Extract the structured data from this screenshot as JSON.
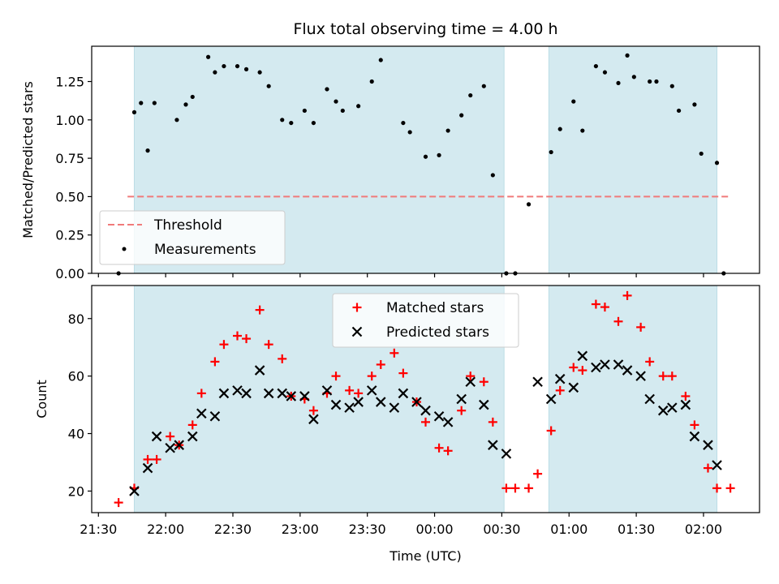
{
  "chart_data": [
    {
      "type": "scatter",
      "title": "Flux total observing time = 4.00 h",
      "ylabel": "Matched/Predicted stars",
      "xlim": [
        "21:27",
        "02:25"
      ],
      "ylim": [
        0,
        1.48
      ],
      "yticks": [
        0.0,
        0.25,
        0.5,
        0.75,
        1.0,
        1.25
      ],
      "yticklabels": [
        "0.00",
        "0.25",
        "0.50",
        "0.75",
        "1.00",
        "1.25"
      ],
      "shaded_intervals": [
        [
          "21:46",
          "00:31"
        ],
        [
          "00:51",
          "02:06"
        ]
      ],
      "shade_color": "#d4eaf0",
      "threshold": {
        "name": "Threshold",
        "value": 0.5,
        "x_range": [
          "21:43",
          "02:12"
        ],
        "color": "#f07a7a"
      },
      "legend": {
        "position": "lower-left",
        "entries": [
          "Threshold",
          "Measurements"
        ]
      },
      "series": [
        {
          "name": "Measurements",
          "color": "#000000",
          "marker": "dot",
          "points": [
            [
              "21:39",
              0.0
            ],
            [
              "21:46",
              1.05
            ],
            [
              "21:49",
              1.11
            ],
            [
              "21:52",
              0.8
            ],
            [
              "21:55",
              1.11
            ],
            [
              "22:05",
              1.0
            ],
            [
              "22:09",
              1.1
            ],
            [
              "22:12",
              1.15
            ],
            [
              "22:19",
              1.41
            ],
            [
              "22:22",
              1.31
            ],
            [
              "22:26",
              1.35
            ],
            [
              "22:32",
              1.35
            ],
            [
              "22:36",
              1.33
            ],
            [
              "22:42",
              1.31
            ],
            [
              "22:46",
              1.22
            ],
            [
              "22:52",
              1.0
            ],
            [
              "22:56",
              0.98
            ],
            [
              "23:02",
              1.06
            ],
            [
              "23:06",
              0.98
            ],
            [
              "23:12",
              1.2
            ],
            [
              "23:16",
              1.12
            ],
            [
              "23:19",
              1.06
            ],
            [
              "23:26",
              1.09
            ],
            [
              "23:32",
              1.25
            ],
            [
              "23:36",
              1.39
            ],
            [
              "23:46",
              0.98
            ],
            [
              "23:49",
              0.92
            ],
            [
              "23:56",
              0.76
            ],
            [
              "00:02",
              0.77
            ],
            [
              "00:06",
              0.93
            ],
            [
              "00:12",
              1.03
            ],
            [
              "00:16",
              1.16
            ],
            [
              "00:22",
              1.22
            ],
            [
              "00:26",
              0.64
            ],
            [
              "00:32",
              0.0
            ],
            [
              "00:36",
              0.0
            ],
            [
              "00:42",
              0.45
            ],
            [
              "00:52",
              0.79
            ],
            [
              "00:56",
              0.94
            ],
            [
              "01:02",
              1.12
            ],
            [
              "01:06",
              0.93
            ],
            [
              "01:12",
              1.35
            ],
            [
              "01:16",
              1.31
            ],
            [
              "01:22",
              1.24
            ],
            [
              "01:26",
              1.42
            ],
            [
              "01:29",
              1.28
            ],
            [
              "01:36",
              1.25
            ],
            [
              "01:39",
              1.25
            ],
            [
              "01:46",
              1.22
            ],
            [
              "01:49",
              1.06
            ],
            [
              "01:56",
              1.1
            ],
            [
              "01:59",
              0.78
            ],
            [
              "02:06",
              0.72
            ],
            [
              "02:09",
              0.0
            ]
          ]
        }
      ]
    },
    {
      "type": "scatter",
      "ylabel": "Count",
      "xlabel": "Time (UTC)",
      "xlim": [
        "21:27",
        "02:25"
      ],
      "ylim": [
        12.5,
        91.5
      ],
      "xticks": [
        "21:30",
        "22:00",
        "22:30",
        "23:00",
        "23:30",
        "00:00",
        "00:30",
        "01:00",
        "01:30",
        "02:00"
      ],
      "yticks": [
        20,
        40,
        60,
        80
      ],
      "shaded_intervals": [
        [
          "21:46",
          "00:31"
        ],
        [
          "00:51",
          "02:06"
        ]
      ],
      "legend": {
        "position": "top-center",
        "entries": [
          "Matched stars",
          "Predicted stars"
        ]
      },
      "series": [
        {
          "name": "Matched stars",
          "color": "#ff0000",
          "marker": "plus",
          "points": [
            [
              "21:39",
              16
            ],
            [
              "21:46",
              21
            ],
            [
              "21:52",
              31
            ],
            [
              "21:56",
              31
            ],
            [
              "22:02",
              39
            ],
            [
              "22:06",
              36
            ],
            [
              "22:12",
              43
            ],
            [
              "22:16",
              54
            ],
            [
              "22:22",
              65
            ],
            [
              "22:26",
              71
            ],
            [
              "22:32",
              74
            ],
            [
              "22:36",
              73
            ],
            [
              "22:42",
              83
            ],
            [
              "22:46",
              71
            ],
            [
              "22:52",
              66
            ],
            [
              "22:56",
              53
            ],
            [
              "23:02",
              52
            ],
            [
              "23:06",
              48
            ],
            [
              "23:12",
              54
            ],
            [
              "23:16",
              60
            ],
            [
              "23:22",
              55
            ],
            [
              "23:26",
              54
            ],
            [
              "23:32",
              60
            ],
            [
              "23:36",
              64
            ],
            [
              "23:42",
              68
            ],
            [
              "23:46",
              61
            ],
            [
              "23:52",
              51
            ],
            [
              "23:56",
              44
            ],
            [
              "00:02",
              35
            ],
            [
              "00:06",
              34
            ],
            [
              "00:12",
              48
            ],
            [
              "00:16",
              60
            ],
            [
              "00:22",
              58
            ],
            [
              "00:26",
              44
            ],
            [
              "00:32",
              21
            ],
            [
              "00:36",
              21
            ],
            [
              "00:42",
              21
            ],
            [
              "00:46",
              26
            ],
            [
              "00:52",
              41
            ],
            [
              "00:56",
              55
            ],
            [
              "01:02",
              63
            ],
            [
              "01:06",
              62
            ],
            [
              "01:12",
              85
            ],
            [
              "01:16",
              84
            ],
            [
              "01:22",
              79
            ],
            [
              "01:26",
              88
            ],
            [
              "01:32",
              77
            ],
            [
              "01:36",
              65
            ],
            [
              "01:42",
              60
            ],
            [
              "01:46",
              60
            ],
            [
              "01:52",
              53
            ],
            [
              "01:56",
              43
            ],
            [
              "02:02",
              28
            ],
            [
              "02:06",
              21
            ],
            [
              "02:12",
              21
            ]
          ]
        },
        {
          "name": "Predicted stars",
          "color": "#000000",
          "marker": "x",
          "points": [
            [
              "21:46",
              20
            ],
            [
              "21:52",
              28
            ],
            [
              "21:56",
              39
            ],
            [
              "22:02",
              35
            ],
            [
              "22:06",
              36
            ],
            [
              "22:12",
              39
            ],
            [
              "22:16",
              47
            ],
            [
              "22:22",
              46
            ],
            [
              "22:26",
              54
            ],
            [
              "22:32",
              55
            ],
            [
              "22:36",
              54
            ],
            [
              "22:42",
              62
            ],
            [
              "22:46",
              54
            ],
            [
              "22:52",
              54
            ],
            [
              "22:56",
              53
            ],
            [
              "23:02",
              53
            ],
            [
              "23:06",
              45
            ],
            [
              "23:12",
              55
            ],
            [
              "23:16",
              50
            ],
            [
              "23:22",
              49
            ],
            [
              "23:26",
              51
            ],
            [
              "23:32",
              55
            ],
            [
              "23:36",
              51
            ],
            [
              "23:42",
              49
            ],
            [
              "23:46",
              54
            ],
            [
              "23:52",
              51
            ],
            [
              "23:56",
              48
            ],
            [
              "00:02",
              46
            ],
            [
              "00:06",
              44
            ],
            [
              "00:12",
              52
            ],
            [
              "00:16",
              58
            ],
            [
              "00:22",
              50
            ],
            [
              "00:26",
              36
            ],
            [
              "00:32",
              33
            ],
            [
              "00:46",
              58
            ],
            [
              "00:52",
              52
            ],
            [
              "00:56",
              59
            ],
            [
              "01:02",
              56
            ],
            [
              "01:06",
              67
            ],
            [
              "01:12",
              63
            ],
            [
              "01:16",
              64
            ],
            [
              "01:22",
              64
            ],
            [
              "01:26",
              62
            ],
            [
              "01:32",
              60
            ],
            [
              "01:36",
              52
            ],
            [
              "01:42",
              48
            ],
            [
              "01:46",
              49
            ],
            [
              "01:52",
              50
            ],
            [
              "01:56",
              39
            ],
            [
              "02:02",
              36
            ],
            [
              "02:06",
              29
            ]
          ]
        }
      ]
    }
  ]
}
